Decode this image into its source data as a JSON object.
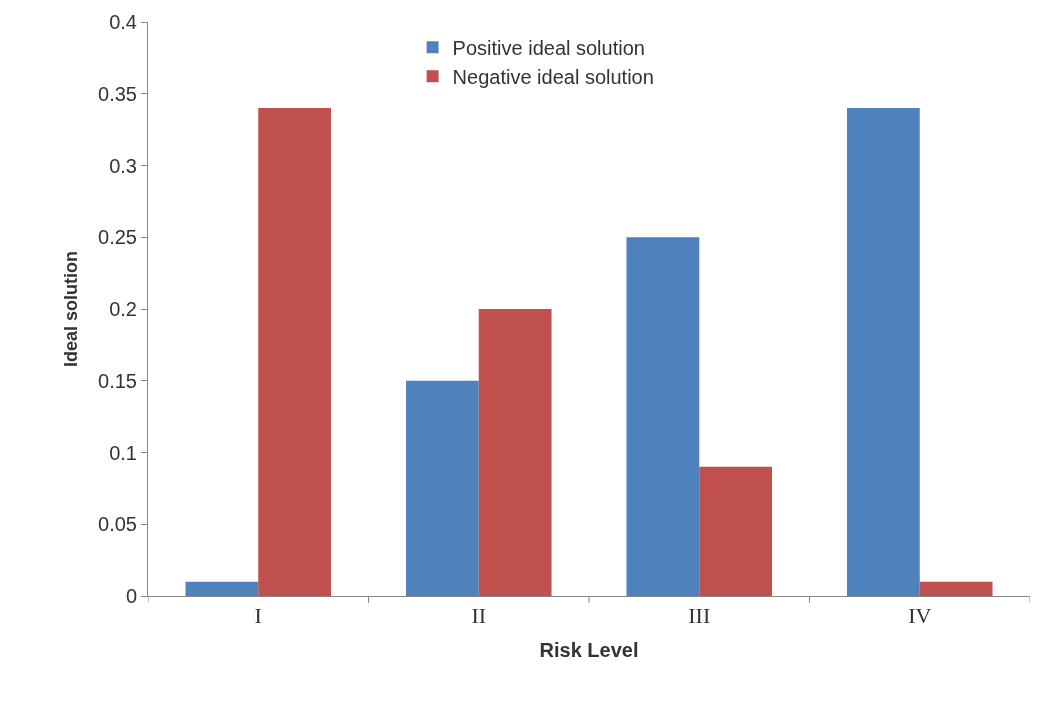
{
  "chart_data": {
    "type": "bar",
    "xlabel": "Risk Level",
    "ylabel": "Ideal solution",
    "categories": [
      "I",
      "II",
      "III",
      "IV"
    ],
    "series": [
      {
        "name": "Positive ideal solution",
        "color": "#4f81bd",
        "values": [
          0.01,
          0.15,
          0.25,
          0.34
        ]
      },
      {
        "name": "Negative ideal solution",
        "color": "#c0504d",
        "values": [
          0.34,
          0.2,
          0.09,
          0.01
        ]
      }
    ],
    "ylim": [
      0,
      0.4
    ],
    "yticks": [
      0,
      0.05,
      0.1,
      0.15,
      0.2,
      0.25,
      0.3,
      0.35,
      0.4
    ],
    "legend": "top"
  }
}
